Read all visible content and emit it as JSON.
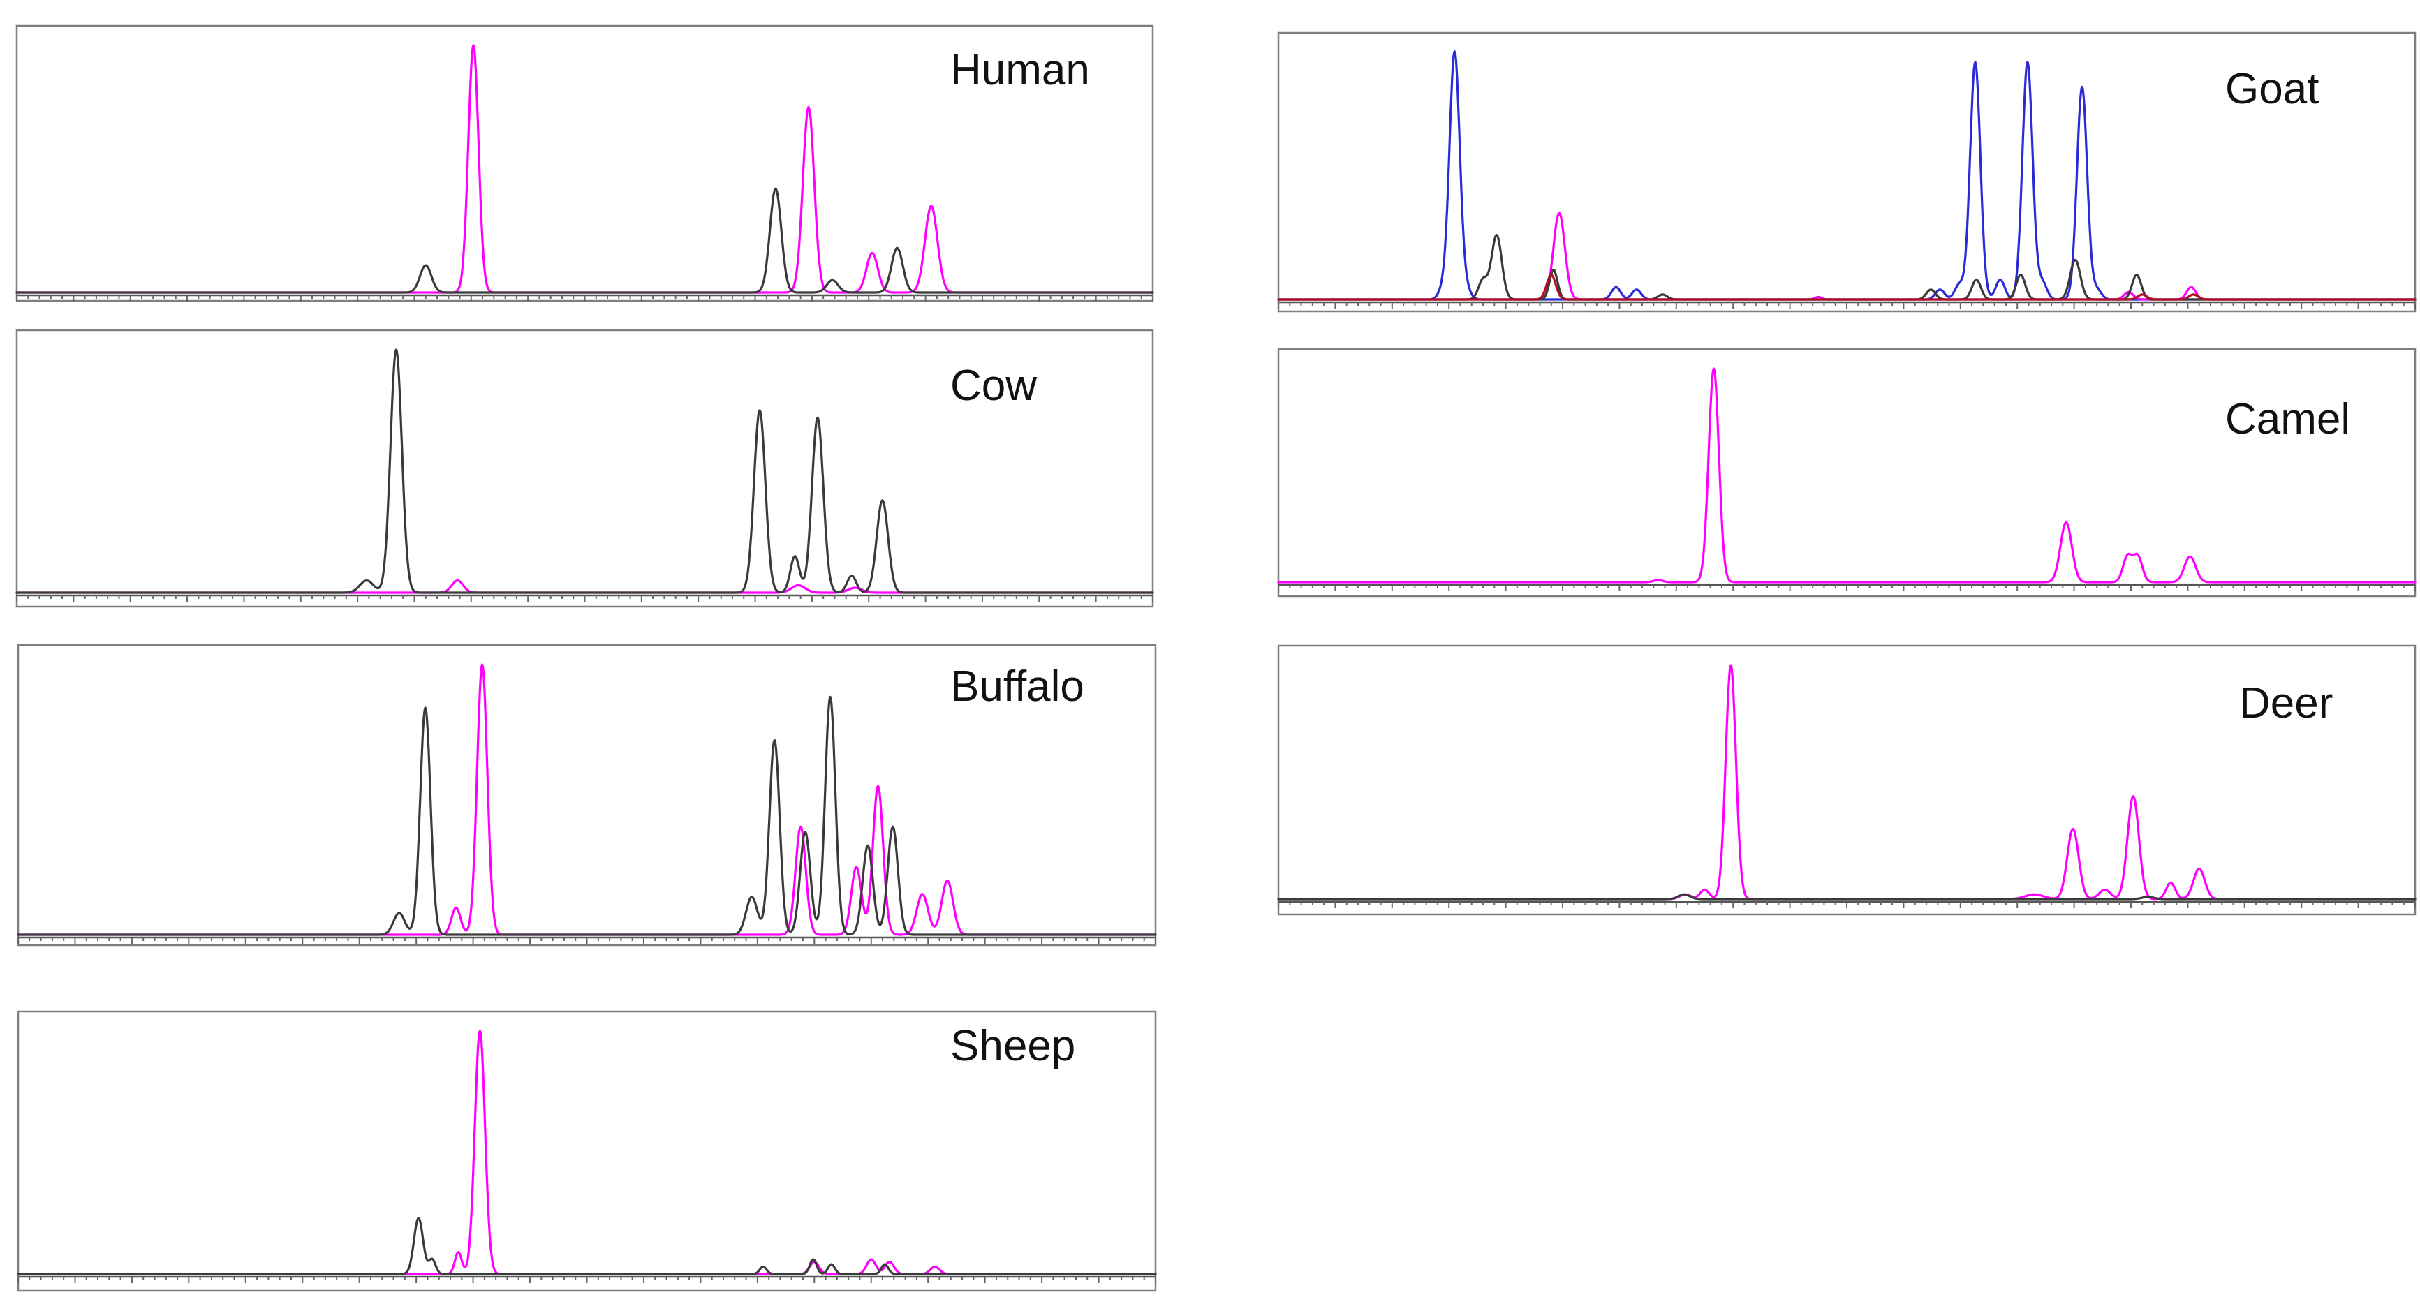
{
  "chart_data": [
    {
      "type": "line",
      "title": "Human",
      "x_range": [
        0,
        100
      ],
      "series": [
        {
          "color": "#ff00ff",
          "peaks": [
            [
              40.2,
              1.0,
              0.45
            ],
            [
              69.7,
              0.75,
              0.5
            ],
            [
              75.3,
              0.16,
              0.5
            ],
            [
              80.5,
              0.35,
              0.55
            ]
          ]
        },
        {
          "color": "#3a3a3a",
          "peaks": [
            [
              36.0,
              0.11,
              0.5
            ],
            [
              66.8,
              0.42,
              0.5
            ],
            [
              71.8,
              0.05,
              0.5
            ],
            [
              77.5,
              0.18,
              0.5
            ]
          ]
        }
      ]
    },
    {
      "type": "line",
      "title": "Cow",
      "x_range": [
        0,
        100
      ],
      "series": [
        {
          "color": "#ff00ff",
          "peaks": [
            [
              38.8,
              0.05,
              0.5
            ],
            [
              68.8,
              0.03,
              0.6
            ],
            [
              73.8,
              0.02,
              0.6
            ]
          ]
        },
        {
          "color": "#3a3a3a",
          "peaks": [
            [
              30.8,
              0.05,
              0.6
            ],
            [
              33.4,
              1.0,
              0.5
            ],
            [
              65.4,
              0.75,
              0.5
            ],
            [
              68.5,
              0.15,
              0.4
            ],
            [
              70.5,
              0.72,
              0.5
            ],
            [
              73.5,
              0.07,
              0.4
            ],
            [
              76.2,
              0.38,
              0.5
            ]
          ]
        }
      ]
    },
    {
      "type": "line",
      "title": "Buffalo",
      "x_range": [
        0,
        100
      ],
      "series": [
        {
          "color": "#ff00ff",
          "peaks": [
            [
              38.5,
              0.1,
              0.4
            ],
            [
              40.8,
              1.0,
              0.45
            ],
            [
              68.8,
              0.4,
              0.45
            ],
            [
              73.7,
              0.25,
              0.45
            ],
            [
              75.6,
              0.55,
              0.45
            ],
            [
              79.5,
              0.15,
              0.5
            ],
            [
              81.7,
              0.2,
              0.5
            ]
          ]
        },
        {
          "color": "#3a3a3a",
          "peaks": [
            [
              33.5,
              0.08,
              0.5
            ],
            [
              35.8,
              0.84,
              0.45
            ],
            [
              64.5,
              0.14,
              0.5
            ],
            [
              66.5,
              0.72,
              0.45
            ],
            [
              69.2,
              0.38,
              0.45
            ],
            [
              71.4,
              0.88,
              0.45
            ],
            [
              74.7,
              0.33,
              0.45
            ],
            [
              76.9,
              0.4,
              0.45
            ]
          ]
        }
      ]
    },
    {
      "type": "line",
      "title": "Sheep",
      "x_range": [
        0,
        100
      ],
      "series": [
        {
          "color": "#ff00ff",
          "peaks": [
            [
              38.7,
              0.09,
              0.3
            ],
            [
              40.6,
              1.0,
              0.45
            ],
            [
              70.0,
              0.05,
              0.4
            ],
            [
              75.0,
              0.06,
              0.4
            ],
            [
              76.6,
              0.05,
              0.4
            ],
            [
              80.6,
              0.03,
              0.4
            ]
          ]
        },
        {
          "color": "#3a3a3a",
          "peaks": [
            [
              35.2,
              0.23,
              0.4
            ],
            [
              36.4,
              0.06,
              0.3
            ],
            [
              65.5,
              0.03,
              0.3
            ],
            [
              69.9,
              0.06,
              0.3
            ],
            [
              71.5,
              0.04,
              0.3
            ],
            [
              76.2,
              0.04,
              0.3
            ]
          ]
        }
      ]
    },
    {
      "type": "line",
      "title": "Goat",
      "x_range": [
        0,
        100
      ],
      "series": [
        {
          "color": "#2a2ad8",
          "peaks": [
            [
              14.5,
              0.04,
              0.4
            ],
            [
              15.5,
              1.0,
              0.45
            ],
            [
              16.5,
              0.04,
              0.4
            ],
            [
              29.7,
              0.05,
              0.4
            ],
            [
              31.5,
              0.04,
              0.4
            ],
            [
              58.2,
              0.04,
              0.4
            ],
            [
              59.9,
              0.06,
              0.4
            ],
            [
              61.3,
              0.96,
              0.45
            ],
            [
              63.5,
              0.08,
              0.4
            ],
            [
              65.9,
              0.96,
              0.45
            ],
            [
              67.2,
              0.07,
              0.4
            ],
            [
              70.7,
              0.86,
              0.45
            ],
            [
              72.0,
              0.04,
              0.4
            ]
          ]
        },
        {
          "color": "#ff00ff",
          "peaks": [
            [
              24.7,
              0.35,
              0.5
            ],
            [
              47.5,
              0.01,
              0.3
            ],
            [
              74.8,
              0.03,
              0.4
            ],
            [
              80.3,
              0.05,
              0.4
            ]
          ]
        },
        {
          "color": "#3a3a3a",
          "peaks": [
            [
              18.0,
              0.08,
              0.4
            ],
            [
              19.2,
              0.26,
              0.45
            ],
            [
              24.2,
              0.12,
              0.35
            ],
            [
              33.8,
              0.02,
              0.4
            ],
            [
              57.4,
              0.04,
              0.4
            ],
            [
              61.4,
              0.08,
              0.4
            ],
            [
              65.3,
              0.1,
              0.4
            ],
            [
              70.1,
              0.16,
              0.45
            ],
            [
              75.5,
              0.1,
              0.4
            ]
          ]
        },
        {
          "color": "#b0101e",
          "peaks": [
            [
              24.0,
              0.1,
              0.4
            ],
            [
              76.0,
              0.02,
              0.4
            ],
            [
              80.5,
              0.02,
              0.4
            ]
          ]
        }
      ]
    },
    {
      "type": "line",
      "title": "Camel",
      "x_range": [
        0,
        100
      ],
      "series": [
        {
          "color": "#ff00ff",
          "peaks": [
            [
              33.4,
              0.01,
              0.4
            ],
            [
              38.3,
              1.0,
              0.45
            ],
            [
              69.3,
              0.28,
              0.5
            ],
            [
              74.7,
              0.12,
              0.4
            ],
            [
              75.6,
              0.12,
              0.4
            ],
            [
              80.2,
              0.12,
              0.5
            ]
          ]
        }
      ]
    },
    {
      "type": "line",
      "title": "Deer",
      "x_range": [
        0,
        100
      ],
      "series": [
        {
          "color": "#ff00ff",
          "peaks": [
            [
              35.8,
              0.02,
              0.5
            ],
            [
              37.5,
              0.04,
              0.4
            ],
            [
              39.8,
              1.0,
              0.45
            ],
            [
              66.5,
              0.02,
              0.8
            ],
            [
              69.9,
              0.3,
              0.5
            ],
            [
              72.7,
              0.04,
              0.5
            ],
            [
              75.2,
              0.44,
              0.5
            ],
            [
              78.5,
              0.07,
              0.4
            ],
            [
              81.0,
              0.13,
              0.5
            ]
          ]
        },
        {
          "color": "#3a3a3a",
          "peaks": [
            [
              35.7,
              0.02,
              0.5
            ],
            [
              76.5,
              0.01,
              0.5
            ]
          ]
        }
      ]
    }
  ]
}
